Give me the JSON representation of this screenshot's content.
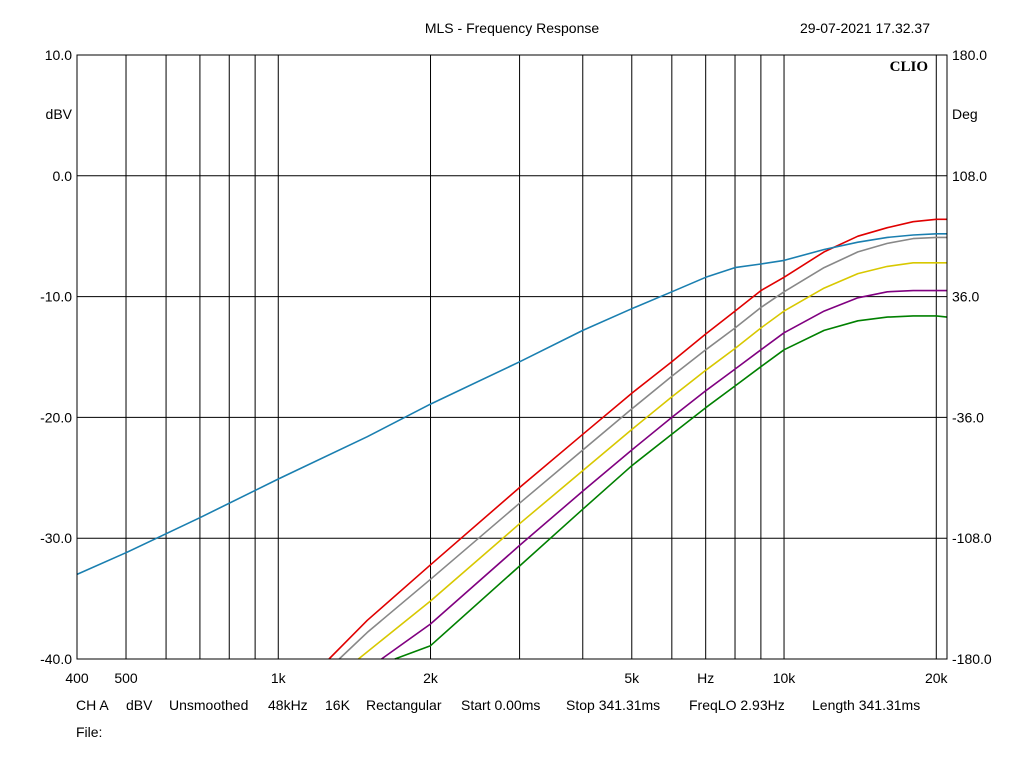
{
  "header": {
    "title": "MLS - Frequency Response",
    "timestamp": "29-07-2021 17.32.37",
    "brand": "CLIO"
  },
  "status": {
    "channel": "CH A",
    "unit": "dBV",
    "smoothing": "Unsmoothed",
    "rate": "48kHz",
    "size": "16K",
    "window": "Rectangular",
    "start": "Start 0.00ms",
    "stop": "Stop 341.31ms",
    "freqlo": "FreqLO 2.93Hz",
    "length": "Length 341.31ms",
    "file": "File:"
  },
  "colors": {
    "background": "#ffffff",
    "grid": "#000000",
    "red": "#e00000",
    "grey": "#888888",
    "yellow": "#d8c800",
    "purple": "#800080",
    "green": "#008000",
    "blue": "#1a7fb0"
  },
  "chart_data": {
    "type": "line",
    "title": "MLS - Frequency Response",
    "xlabel": "Hz",
    "ylabel": "dBV",
    "y2label": "Deg",
    "x_scale": "log",
    "xlim": [
      400,
      21000
    ],
    "ylim": [
      -40,
      10
    ],
    "y2lim": [
      -180,
      180
    ],
    "grid": true,
    "x_tick_labels": [
      {
        "value": 400,
        "label": "400"
      },
      {
        "value": 500,
        "label": "500"
      },
      {
        "value": 1000,
        "label": "1k"
      },
      {
        "value": 2000,
        "label": "2k"
      },
      {
        "value": 5000,
        "label": "5k"
      },
      {
        "value": 10000,
        "label": "10k"
      },
      {
        "value": 20000,
        "label": "20k"
      }
    ],
    "y_tick_labels": [
      "10.0",
      "0.0",
      "-10.0",
      "-20.0",
      "-30.0",
      "-40.0"
    ],
    "y_ticks": [
      10,
      0,
      -10,
      -20,
      -30,
      -40
    ],
    "y2_tick_labels": [
      "180.0",
      "108.0",
      "36.0",
      "-36.0",
      "-108.0",
      "-180.0"
    ],
    "series": [
      {
        "color": "red",
        "x": [
          1260,
          1500,
          2000,
          3000,
          4000,
          5000,
          6000,
          7000,
          8000,
          9000,
          10000,
          12000,
          14000,
          16000,
          18000,
          20000,
          21000
        ],
        "y": [
          -40,
          -36.8,
          -32.2,
          -25.8,
          -21.4,
          -18.0,
          -15.4,
          -13.1,
          -11.2,
          -9.5,
          -8.4,
          -6.3,
          -5.0,
          -4.3,
          -3.8,
          -3.6,
          -3.6
        ]
      },
      {
        "color": "grey",
        "x": [
          1320,
          1500,
          2000,
          3000,
          4000,
          5000,
          6000,
          7000,
          8000,
          9000,
          10000,
          12000,
          14000,
          16000,
          18000,
          20000,
          21000
        ],
        "y": [
          -40,
          -37.8,
          -33.4,
          -27.1,
          -22.7,
          -19.3,
          -16.6,
          -14.4,
          -12.6,
          -10.9,
          -9.6,
          -7.6,
          -6.3,
          -5.6,
          -5.2,
          -5.1,
          -5.1
        ]
      },
      {
        "color": "yellow",
        "x": [
          1440,
          2000,
          3000,
          4000,
          5000,
          6000,
          7000,
          8000,
          9000,
          10000,
          12000,
          14000,
          16000,
          18000,
          20000,
          21000
        ],
        "y": [
          -40,
          -35.2,
          -28.8,
          -24.4,
          -21.0,
          -18.3,
          -16.1,
          -14.3,
          -12.6,
          -11.2,
          -9.3,
          -8.1,
          -7.5,
          -7.2,
          -7.2,
          -7.2
        ]
      },
      {
        "color": "purple",
        "x": [
          1600,
          2000,
          3000,
          4000,
          5000,
          6000,
          7000,
          8000,
          9000,
          10000,
          12000,
          14000,
          16000,
          18000,
          20000,
          21000
        ],
        "y": [
          -40,
          -37.1,
          -30.6,
          -26.1,
          -22.7,
          -20.0,
          -17.8,
          -16.0,
          -14.4,
          -13.0,
          -11.2,
          -10.1,
          -9.6,
          -9.5,
          -9.5,
          -9.5
        ]
      },
      {
        "color": "green",
        "x": [
          1700,
          2000,
          3000,
          4000,
          5000,
          6000,
          7000,
          8000,
          9000,
          10000,
          12000,
          14000,
          16000,
          18000,
          20000,
          21000
        ],
        "y": [
          -40,
          -38.9,
          -32.3,
          -27.6,
          -24.0,
          -21.4,
          -19.2,
          -17.4,
          -15.8,
          -14.4,
          -12.8,
          -12.0,
          -11.7,
          -11.6,
          -11.6,
          -11.7
        ]
      },
      {
        "color": "blue",
        "x": [
          400,
          500,
          700,
          1000,
          1500,
          2000,
          3000,
          4000,
          5000,
          6000,
          7000,
          8000,
          9000,
          10000,
          12000,
          14000,
          16000,
          18000,
          20000,
          21000
        ],
        "y": [
          -33.0,
          -31.2,
          -28.3,
          -25.1,
          -21.6,
          -18.9,
          -15.4,
          -12.8,
          -11.0,
          -9.6,
          -8.4,
          -7.6,
          -7.3,
          -7.0,
          -6.1,
          -5.5,
          -5.1,
          -4.9,
          -4.8,
          -4.8
        ]
      }
    ]
  }
}
